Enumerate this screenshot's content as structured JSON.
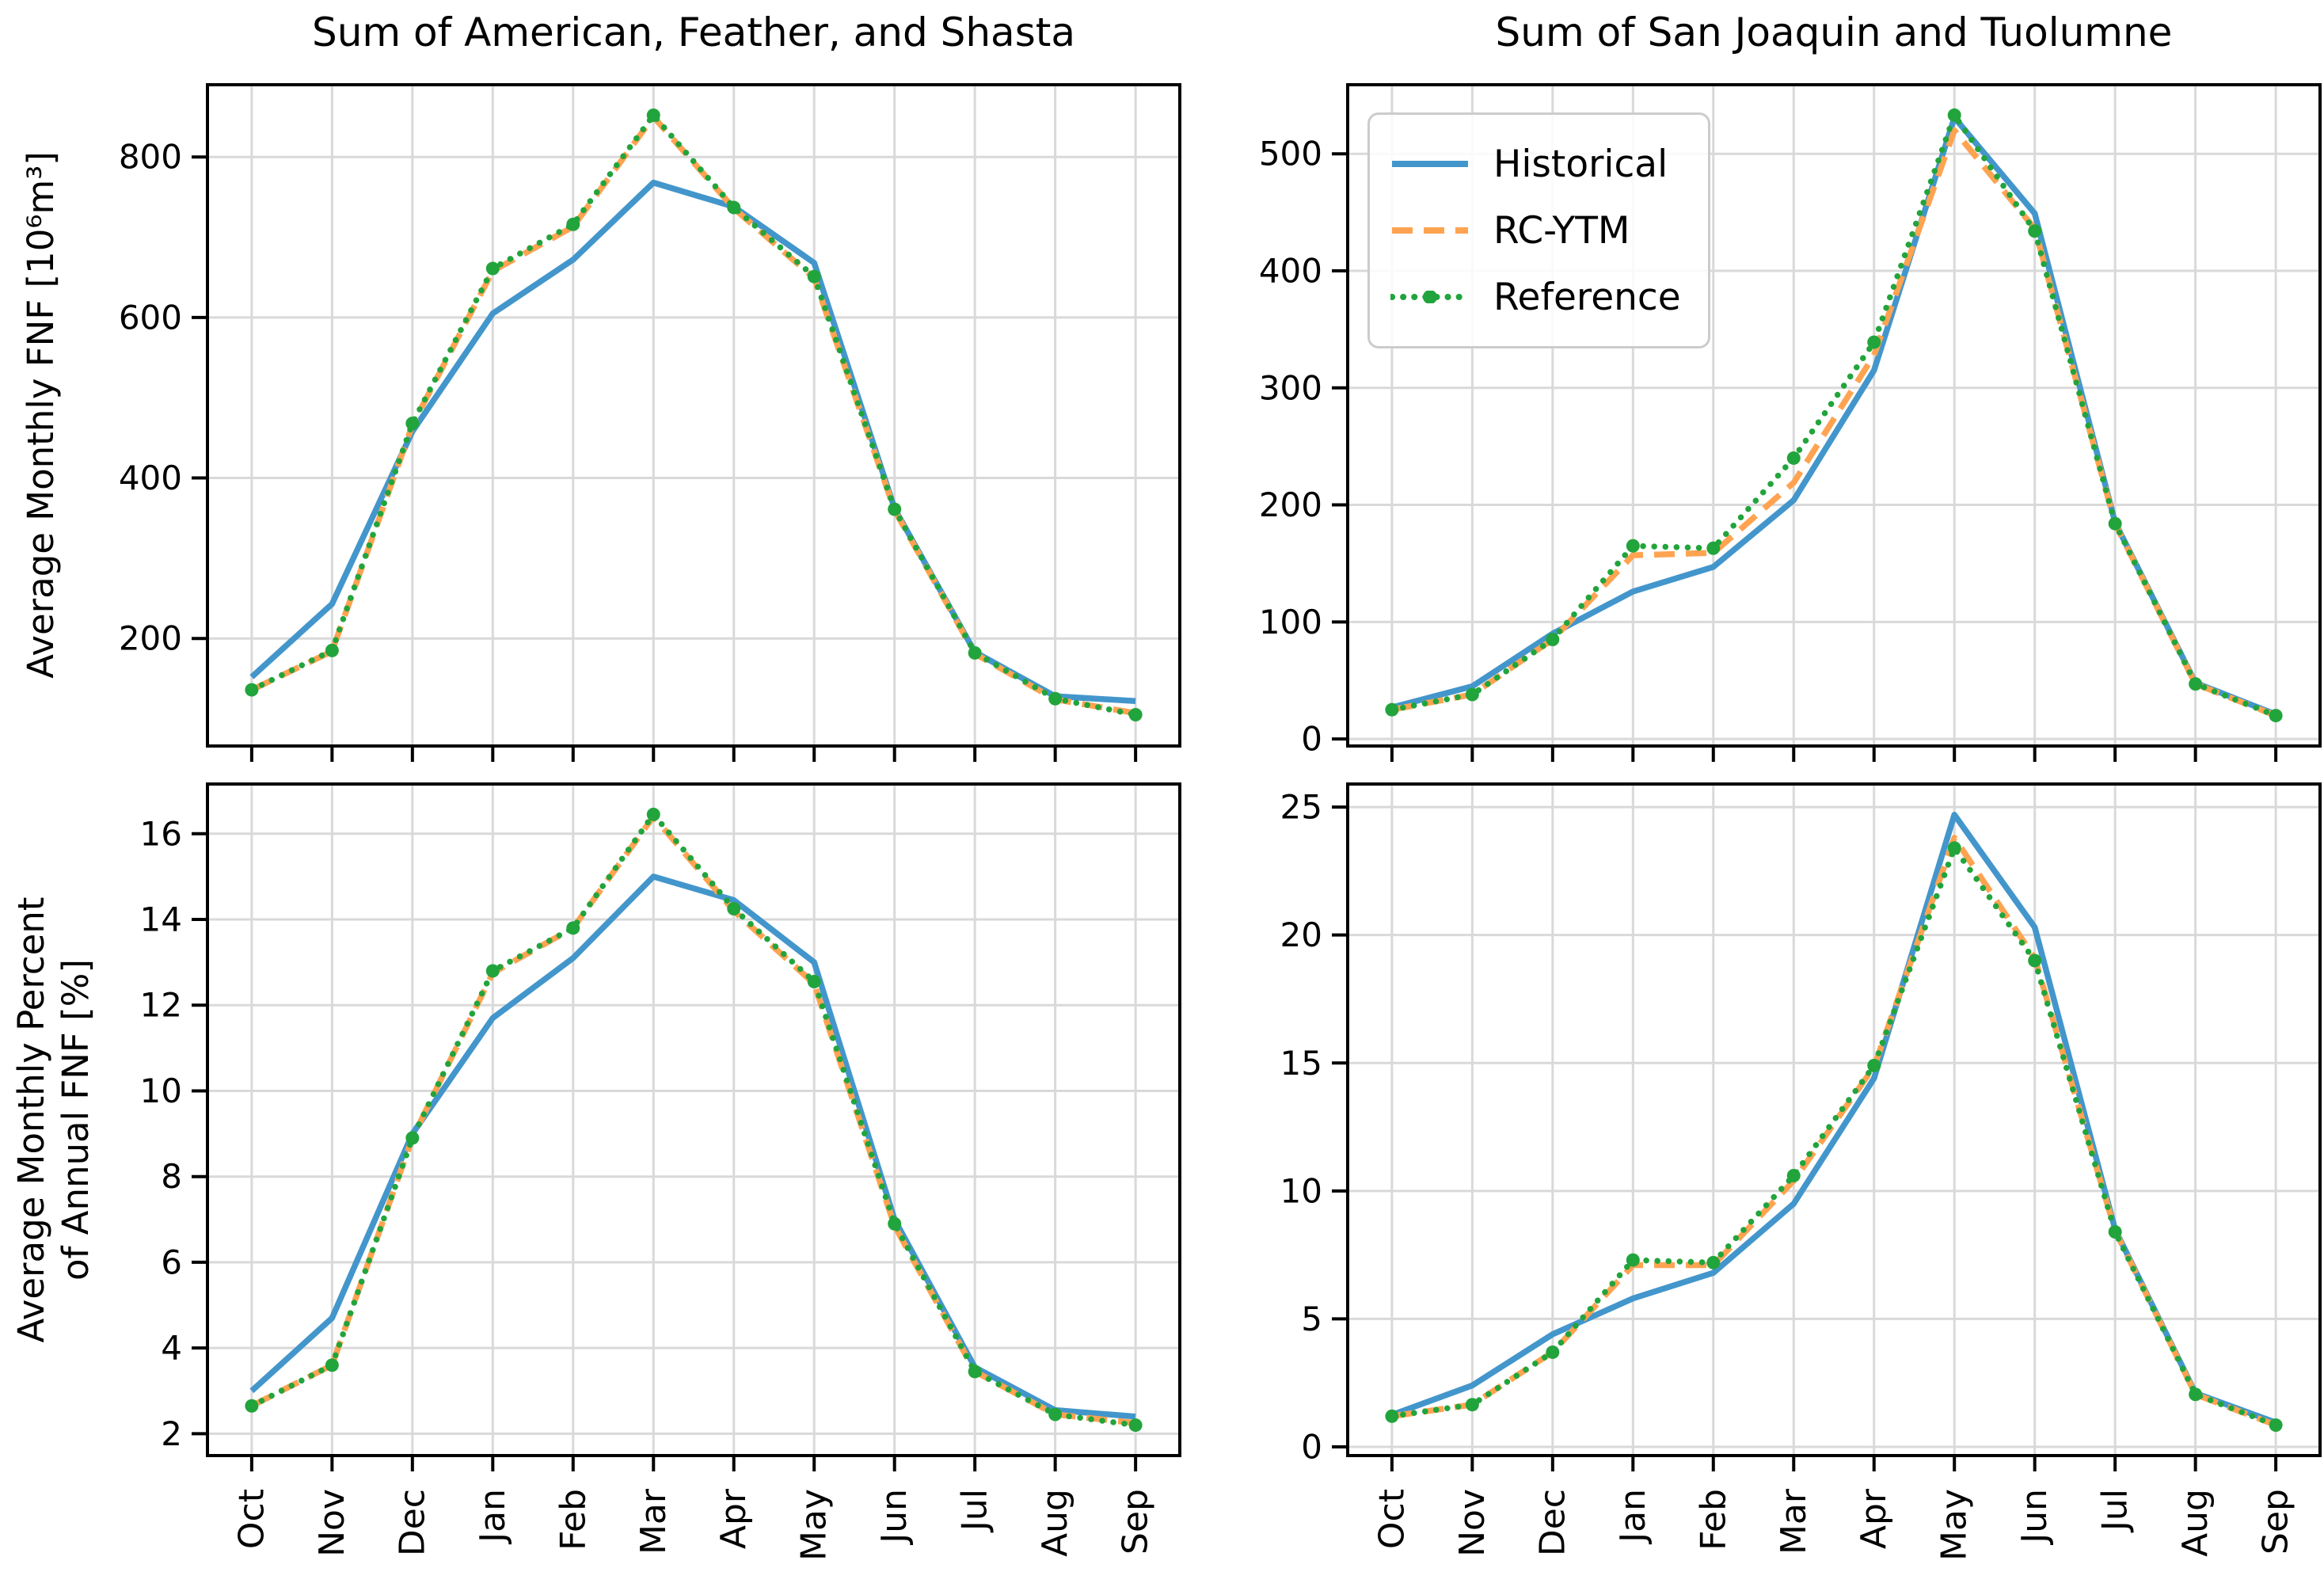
{
  "chart_data": {
    "type": "line",
    "categories": [
      "Oct",
      "Nov",
      "Dec",
      "Jan",
      "Feb",
      "Mar",
      "Apr",
      "May",
      "Jun",
      "Jul",
      "Aug",
      "Sep"
    ],
    "grid": true,
    "legend_position": "upper-left of top-right subplot",
    "legend": [
      {
        "label": "Historical",
        "style": "solid",
        "color": "#4396cb"
      },
      {
        "label": "RC-YTM",
        "style": "dashed",
        "color": "#ffa351"
      },
      {
        "label": "Reference",
        "style": "dotted",
        "color": "#22a43c"
      }
    ],
    "grid_color": "#d9d9d9",
    "spine_color": "#000000",
    "charts": [
      {
        "id": "top_left",
        "title": "Sum of American, Feather, and Shasta",
        "ylabel": "Average Monthly FNF [10⁶m³]",
        "ylim": [
          66,
          890
        ],
        "yticks": [
          200,
          400,
          600,
          800
        ],
        "series": [
          {
            "name": "Historical",
            "values": [
              152,
              243,
              458,
              605,
              672,
              768,
              738,
              668,
              362,
              183,
              128,
              122
            ]
          },
          {
            "name": "RC-YTM",
            "values": [
              136,
              184,
              466,
              658,
              713,
              850,
              736,
              649,
              360,
              181,
              124,
              107
            ]
          },
          {
            "name": "Reference",
            "values": [
              136,
              185,
              468,
              661,
              716,
              852,
              737,
              651,
              361,
              182,
              125,
              105
            ]
          }
        ]
      },
      {
        "id": "top_right",
        "title": "Sum of San Joaquin and Tuolumne",
        "ylim": [
          -6,
          559
        ],
        "yticks": [
          0,
          100,
          200,
          300,
          400,
          500
        ],
        "series": [
          {
            "name": "Historical",
            "values": [
              27,
              45,
              90,
              126,
              147,
              204,
              315,
              531,
              449,
              185,
              48,
              21
            ]
          },
          {
            "name": "RC-YTM",
            "values": [
              25,
              38,
              85,
              157,
              159,
              219,
              328,
              520,
              436,
              184,
              47,
              20
            ]
          },
          {
            "name": "Reference",
            "values": [
              25,
              38,
              85,
              165,
              163,
              240,
              339,
              533,
              434,
              184,
              47,
              20
            ]
          }
        ]
      },
      {
        "id": "bottom_left",
        "ylabel": "Average Monthly Percent\nof Annual FNF [%]",
        "ylim": [
          1.49,
          17.16
        ],
        "yticks": [
          2,
          4,
          6,
          8,
          10,
          12,
          14,
          16
        ],
        "series": [
          {
            "name": "Historical",
            "values": [
              3.0,
              4.7,
              9.0,
              11.7,
              13.1,
              15.0,
              14.45,
              13.0,
              7.0,
              3.55,
              2.55,
              2.4
            ]
          },
          {
            "name": "RC-YTM",
            "values": [
              2.65,
              3.6,
              8.9,
              12.75,
              13.8,
              16.4,
              14.2,
              12.5,
              6.85,
              3.45,
              2.45,
              2.25
            ]
          },
          {
            "name": "Reference",
            "values": [
              2.65,
              3.6,
              8.9,
              12.8,
              13.8,
              16.45,
              14.25,
              12.55,
              6.9,
              3.45,
              2.45,
              2.2
            ]
          }
        ]
      },
      {
        "id": "bottom_right",
        "ylim": [
          -0.34,
          25.9
        ],
        "yticks": [
          0,
          5,
          10,
          15,
          20,
          25
        ],
        "series": [
          {
            "name": "Historical",
            "values": [
              1.25,
              2.4,
              4.4,
              5.8,
              6.8,
              9.5,
              14.4,
              24.7,
              20.3,
              8.5,
              2.1,
              0.95
            ]
          },
          {
            "name": "RC-YTM",
            "values": [
              1.2,
              1.65,
              3.7,
              7.1,
              7.1,
              10.4,
              14.85,
              23.8,
              19.1,
              8.45,
              2.05,
              0.85
            ]
          },
          {
            "name": "Reference",
            "values": [
              1.2,
              1.65,
              3.7,
              7.3,
              7.2,
              10.6,
              14.9,
              23.4,
              19.0,
              8.4,
              2.05,
              0.85
            ]
          }
        ]
      }
    ]
  }
}
